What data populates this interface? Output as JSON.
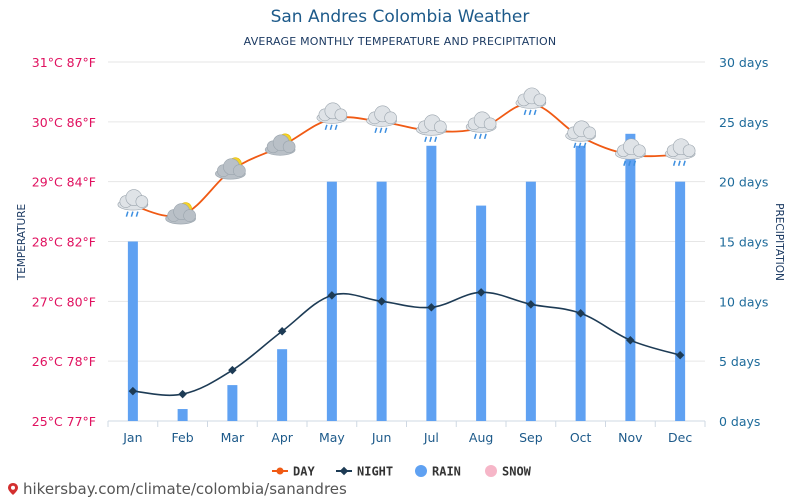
{
  "chart_data": {
    "type": "bar",
    "title": "San Andres Colombia Weather",
    "subtitle": "AVERAGE MONTHLY TEMPERATURE AND PRECIPITATION",
    "ylabel_left": "TEMPERATURE",
    "ylabel_right": "PRECIPITATION",
    "categories": [
      "Jan",
      "Feb",
      "Mar",
      "Apr",
      "May",
      "Jun",
      "Jul",
      "Aug",
      "Sep",
      "Oct",
      "Nov",
      "Dec"
    ],
    "temp_axis": {
      "min": 25,
      "max": 31,
      "ticks": [
        "25°C 77°F",
        "26°C 78°F",
        "27°C 80°F",
        "28°C 82°F",
        "29°C 84°F",
        "30°C 86°F",
        "31°C 87°F"
      ]
    },
    "precip_axis": {
      "min": 0,
      "max": 30,
      "ticks": [
        "0 days",
        "5 days",
        "10 days",
        "15 days",
        "20 days",
        "25 days",
        "30 days"
      ]
    },
    "series": [
      {
        "name": "DAY",
        "type": "line",
        "values": [
          28.6,
          28.45,
          29.2,
          29.6,
          30.05,
          30.0,
          29.85,
          29.9,
          30.3,
          29.75,
          29.45,
          29.45
        ]
      },
      {
        "name": "NIGHT",
        "type": "line",
        "values": [
          25.5,
          25.45,
          25.85,
          26.5,
          27.1,
          27.0,
          26.9,
          27.15,
          26.95,
          26.8,
          26.35,
          26.1
        ]
      },
      {
        "name": "RAIN",
        "type": "bar",
        "values": [
          15,
          1,
          3,
          6,
          20,
          20,
          23,
          18,
          20,
          23,
          24,
          20
        ]
      },
      {
        "name": "SNOW",
        "type": "bar",
        "values": [
          0,
          0,
          0,
          0,
          0,
          0,
          0,
          0,
          0,
          0,
          0,
          0
        ]
      }
    ],
    "weather_icons": [
      "rain-cloud-icon",
      "partly-sunny-icon",
      "partly-sunny-icon",
      "partly-sunny-icon",
      "rain-cloud-icon",
      "rain-cloud-icon",
      "rain-cloud-icon",
      "rain-cloud-icon",
      "rain-cloud-icon",
      "rain-cloud-icon",
      "rain-cloud-icon",
      "rain-cloud-icon"
    ],
    "colors": {
      "day": "#f05a14",
      "night": "#1d3b55",
      "rain": "#5fa1f2",
      "snow": "#f6b6c8",
      "left_axis": "#e0115f",
      "right_axis": "#1d6a9a",
      "grid": "#e6e6e6"
    },
    "legend_position": "bottom-center",
    "grid": true
  },
  "footer": {
    "url": "hikersbay.com/climate/colombia/sanandres"
  }
}
